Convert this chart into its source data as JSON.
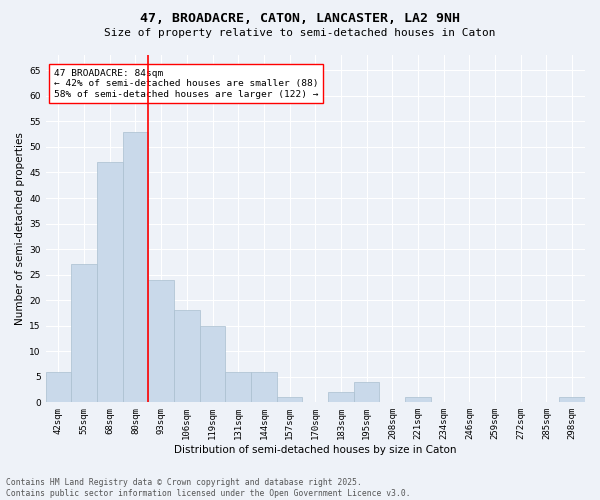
{
  "title1": "47, BROADACRE, CATON, LANCASTER, LA2 9NH",
  "title2": "Size of property relative to semi-detached houses in Caton",
  "xlabel": "Distribution of semi-detached houses by size in Caton",
  "ylabel": "Number of semi-detached properties",
  "categories": [
    "42sqm",
    "55sqm",
    "68sqm",
    "80sqm",
    "93sqm",
    "106sqm",
    "119sqm",
    "131sqm",
    "144sqm",
    "157sqm",
    "170sqm",
    "183sqm",
    "195sqm",
    "208sqm",
    "221sqm",
    "234sqm",
    "246sqm",
    "259sqm",
    "272sqm",
    "285sqm",
    "298sqm"
  ],
  "values": [
    6,
    27,
    47,
    53,
    24,
    18,
    15,
    6,
    6,
    1,
    0,
    2,
    4,
    0,
    1,
    0,
    0,
    0,
    0,
    0,
    1
  ],
  "bar_color": "#c9d9ea",
  "bar_edge_color": "#aabfcf",
  "vline_color": "red",
  "annotation_text": "47 BROADACRE: 84sqm\n← 42% of semi-detached houses are smaller (88)\n58% of semi-detached houses are larger (122) →",
  "ylim": [
    0,
    68
  ],
  "yticks": [
    0,
    5,
    10,
    15,
    20,
    25,
    30,
    35,
    40,
    45,
    50,
    55,
    60,
    65
  ],
  "background_color": "#eef2f8",
  "grid_color": "#ffffff",
  "footer": "Contains HM Land Registry data © Crown copyright and database right 2025.\nContains public sector information licensed under the Open Government Licence v3.0.",
  "title_fontsize": 9.5,
  "subtitle_fontsize": 8.0,
  "axis_label_fontsize": 7.5,
  "tick_fontsize": 6.5,
  "annotation_fontsize": 6.8,
  "footer_fontsize": 5.8
}
